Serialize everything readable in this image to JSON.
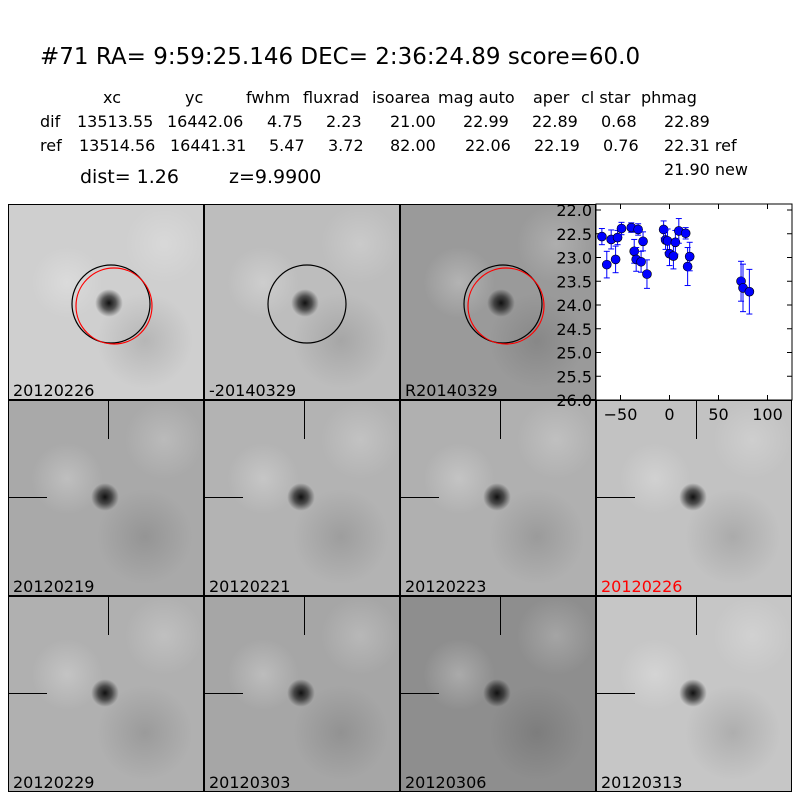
{
  "title": "#71   RA= 9:59:25.146 DEC= 2:36:24.89      score=60.0",
  "table": {
    "headers": [
      "xc",
      "yc",
      "fwhm",
      "fluxrad",
      "isoarea",
      "mag auto",
      "aper",
      "cl star",
      "phmag"
    ],
    "rows": [
      {
        "label": "dif",
        "values": [
          "13513.55",
          "16442.06",
          "4.75",
          "2.23",
          "21.00",
          "22.99",
          "22.89",
          "0.68",
          "22.89"
        ]
      },
      {
        "label": "ref",
        "values": [
          "13514.56",
          "16441.31",
          "5.47",
          "3.72",
          "82.00",
          "22.06",
          "22.19",
          "0.76",
          "22.31 ref"
        ]
      }
    ],
    "extra_phmag": "21.90 new",
    "dist": "dist=  1.26",
    "z": "z=9.9900"
  },
  "panels": [
    {
      "label": "20120226",
      "bg": "#cfcfcf",
      "circles": [
        "black",
        "red"
      ]
    },
    {
      "label": "-20140329",
      "bg": "#bdbdbd",
      "circles": [
        "black"
      ]
    },
    {
      "label": "R20140329",
      "bg": "#9a9a9a",
      "circles": [
        "black",
        "red"
      ]
    },
    {
      "label": "20120219",
      "bg": "#a9a9a9",
      "crosshair": true
    },
    {
      "label": "20120221",
      "bg": "#b3b3b3",
      "crosshair": true
    },
    {
      "label": "20120223",
      "bg": "#b0b0b0",
      "crosshair": true
    },
    {
      "label": "20120226",
      "bg": "#c2c2c2",
      "crosshair": true,
      "label_color": "#ff0000"
    },
    {
      "label": "20120229",
      "bg": "#b0b0b0",
      "crosshair": true
    },
    {
      "label": "20120303",
      "bg": "#a6a6a6",
      "crosshair": true
    },
    {
      "label": "20120306",
      "bg": "#8e8e8e",
      "crosshair": true
    },
    {
      "label": "20120313",
      "bg": "#c6c6c6",
      "crosshair": true
    }
  ],
  "chart_data": {
    "type": "scatter",
    "xlim": [
      -75,
      125
    ],
    "ylim": [
      26.0,
      22.0
    ],
    "y_inverted": true,
    "xticks": [
      -50,
      0,
      50,
      100
    ],
    "yticks": [
      22.0,
      22.5,
      23.0,
      23.5,
      24.0,
      24.5,
      25.0,
      25.5,
      26.0
    ],
    "color": "#0000ff",
    "points": [
      {
        "x": -69,
        "y": 22.56,
        "err": 0.17
      },
      {
        "x": -64,
        "y": 23.15,
        "err": 0.28
      },
      {
        "x": -59.5,
        "y": 22.62,
        "err": 0.2
      },
      {
        "x": -55,
        "y": 23.04,
        "err": 0.28
      },
      {
        "x": -53,
        "y": 22.58,
        "err": 0.15
      },
      {
        "x": -49,
        "y": 22.39,
        "err": 0.13
      },
      {
        "x": -39,
        "y": 22.37,
        "err": 0.1
      },
      {
        "x": -36,
        "y": 22.87,
        "err": 0.25
      },
      {
        "x": -34,
        "y": 23.04,
        "err": 0.25
      },
      {
        "x": -32,
        "y": 22.41,
        "err": 0.12
      },
      {
        "x": -29,
        "y": 23.09,
        "err": 0.22
      },
      {
        "x": -27,
        "y": 22.66,
        "err": 0.2
      },
      {
        "x": -23,
        "y": 23.35,
        "err": 0.3
      },
      {
        "x": -6,
        "y": 22.41,
        "err": 0.18
      },
      {
        "x": -4,
        "y": 22.63,
        "err": 0.2
      },
      {
        "x": -2,
        "y": 22.65,
        "err": 0.25
      },
      {
        "x": 0,
        "y": 22.92,
        "err": 0.25
      },
      {
        "x": 4,
        "y": 22.97,
        "err": 0.27
      },
      {
        "x": 6,
        "y": 22.68,
        "err": 0.25
      },
      {
        "x": 9.5,
        "y": 22.44,
        "err": 0.26
      },
      {
        "x": 16.5,
        "y": 22.49,
        "err": 0.12
      },
      {
        "x": 18.5,
        "y": 23.19,
        "err": 0.4
      },
      {
        "x": 20.6,
        "y": 22.98,
        "err": 0.3
      },
      {
        "x": 73,
        "y": 23.5,
        "err": 0.42
      },
      {
        "x": 75,
        "y": 23.64,
        "err": 0.5
      },
      {
        "x": 81.5,
        "y": 23.72,
        "err": 0.47
      }
    ]
  }
}
